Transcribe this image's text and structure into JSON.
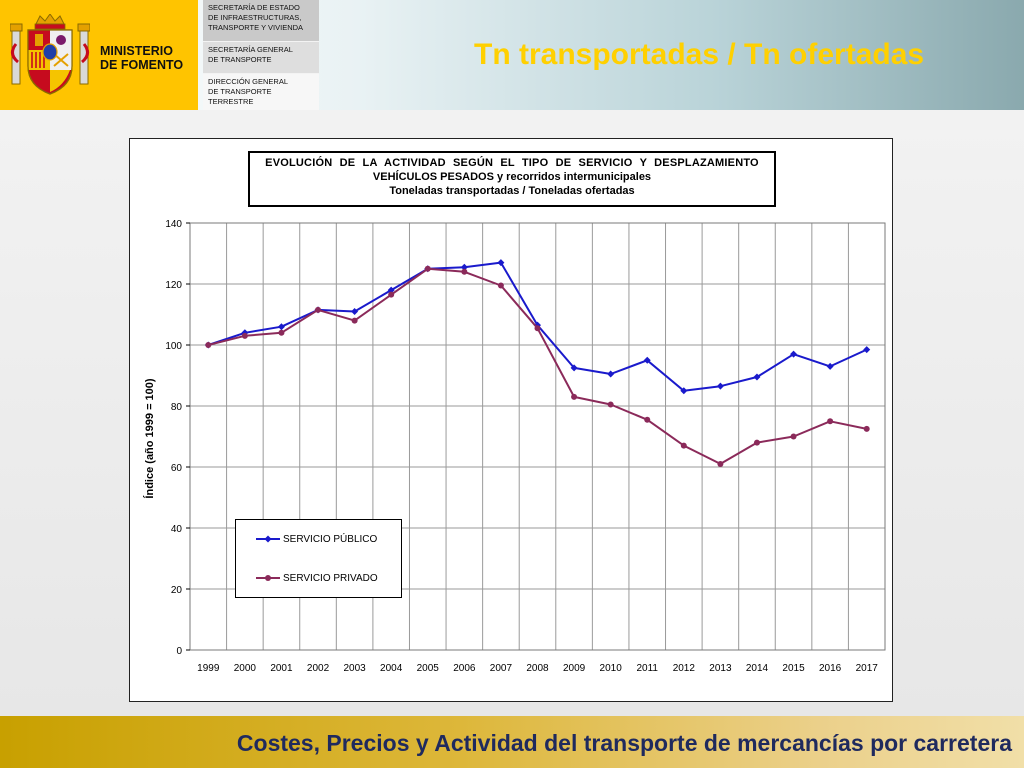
{
  "header": {
    "ministry_line1": "MINISTERIO",
    "ministry_line2": "DE FOMENTO",
    "dept1": [
      "SECRETARÍA DE ESTADO",
      "DE INFRAESTRUCTURAS,",
      "TRANSPORTE Y VIVIENDA"
    ],
    "dept2": [
      "SECRETARÍA GENERAL",
      "DE TRANSPORTE"
    ],
    "dept3": [
      "DIRECCIÓN GENERAL",
      "DE TRANSPORTE",
      "TERRESTRE"
    ],
    "slide_title": "Tn transportadas / Tn ofertadas",
    "title_color": "#ffd000",
    "logo_bg": "#ffc400"
  },
  "footer": {
    "text": "Costes, Precios y Actividad del transporte de mercancías por carretera",
    "text_color": "#1f2a5e"
  },
  "chart_data": {
    "type": "line",
    "title_lines": [
      "EVOLUCIÓN DE LA ACTIVIDAD SEGÚN EL TIPO DE SERVICIO Y DESPLAZAMIENTO",
      "VEHÍCULOS PESADOS y recorridos intermunicipales",
      "Toneladas transportadas / Toneladas ofertadas"
    ],
    "xlabel": "",
    "ylabel": "Índice (año 1999 = 100)",
    "ylim": [
      0,
      140
    ],
    "yticks": [
      0,
      20,
      40,
      60,
      80,
      100,
      120,
      140
    ],
    "grid": true,
    "legend_position": "bottom-left",
    "categories": [
      "1999",
      "2000",
      "2001",
      "2002",
      "2003",
      "2004",
      "2005",
      "2006",
      "2007",
      "2008",
      "2009",
      "2010",
      "2011",
      "2012",
      "2013",
      "2014",
      "2015",
      "2016",
      "2017"
    ],
    "series": [
      {
        "name": "SERVICIO PÚBLICO",
        "color": "#1a1acc",
        "marker": "diamond",
        "values": [
          100,
          104,
          106,
          111.5,
          111,
          118,
          125,
          125.5,
          127,
          106.5,
          92.5,
          90.5,
          95,
          85,
          86.5,
          89.5,
          97,
          93,
          98.5
        ]
      },
      {
        "name": "SERVICIO PRIVADO",
        "color": "#8b2a5a",
        "marker": "circle",
        "values": [
          100,
          103,
          104,
          111.5,
          108,
          116.5,
          125,
          124,
          119.5,
          105.5,
          83,
          80.5,
          75.5,
          67,
          61,
          68,
          70,
          75,
          72.5
        ]
      }
    ]
  }
}
